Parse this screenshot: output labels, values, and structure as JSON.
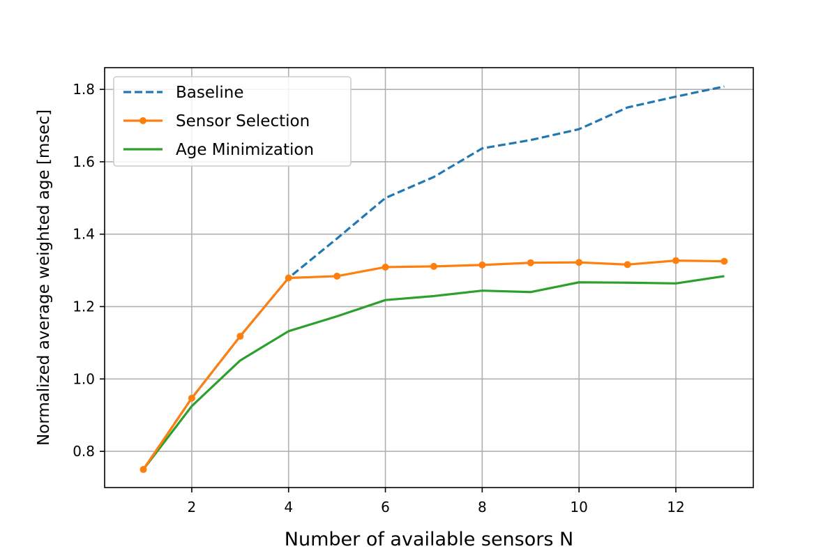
{
  "chart_data": {
    "type": "line",
    "title": "",
    "xlabel": "Number of available sensors N",
    "ylabel": "Normalized average weighted age [msec]",
    "xlim": [
      0.2,
      13.6
    ],
    "ylim": [
      0.7,
      1.86
    ],
    "xticks": [
      2,
      4,
      6,
      8,
      10,
      12
    ],
    "yticks": [
      0.8,
      1.0,
      1.2,
      1.4,
      1.6,
      1.8
    ],
    "xtick_labels": [
      "2",
      "4",
      "6",
      "8",
      "10",
      "12"
    ],
    "ytick_labels": [
      "0.8",
      "1.0",
      "1.2",
      "1.4",
      "1.6",
      "1.8"
    ],
    "grid": true,
    "legend_position": "top-left",
    "x": [
      1,
      2,
      3,
      4,
      5,
      6,
      7,
      8,
      9,
      10,
      11,
      12,
      13
    ],
    "series": [
      {
        "name": "Baseline",
        "color": "#1f77b4",
        "style": "dashed",
        "marker": "none",
        "values": [
          0.75,
          0.947,
          1.118,
          1.279,
          1.388,
          1.5,
          1.558,
          1.637,
          1.66,
          1.69,
          1.75,
          1.78,
          1.808
        ]
      },
      {
        "name": "Sensor Selection",
        "color": "#ff7f0e",
        "style": "solid",
        "marker": "circle",
        "values": [
          0.75,
          0.947,
          1.118,
          1.279,
          1.284,
          1.309,
          1.311,
          1.315,
          1.321,
          1.322,
          1.316,
          1.327,
          1.325
        ]
      },
      {
        "name": "Age Minimization",
        "color": "#2ca02c",
        "style": "solid",
        "marker": "none",
        "values": [
          0.75,
          0.925,
          1.051,
          1.132,
          1.173,
          1.218,
          1.229,
          1.244,
          1.24,
          1.267,
          1.266,
          1.264,
          1.284
        ]
      }
    ]
  }
}
